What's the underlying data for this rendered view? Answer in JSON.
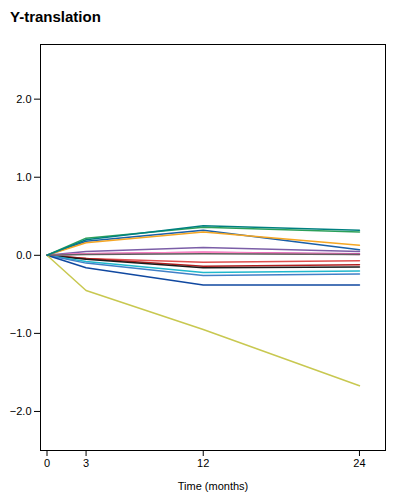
{
  "chart_data": {
    "type": "line",
    "title": "Y-translation",
    "xlabel": "Time (months)",
    "x": [
      0,
      3,
      12,
      24
    ],
    "xlim": [
      -0.5,
      26
    ],
    "xticks": [
      0,
      3,
      12,
      24
    ],
    "ylim": [
      -2.5,
      2.7
    ],
    "yticks": [
      -2,
      -1,
      0,
      1,
      2
    ],
    "grid": false,
    "series": [
      {
        "color": "#1a5fa8",
        "values": [
          0,
          0.18,
          0.32,
          0.07
        ]
      },
      {
        "color": "#2ca05a",
        "values": [
          0,
          0.22,
          0.36,
          0.3
        ]
      },
      {
        "color": "#f5a623",
        "values": [
          0,
          0.16,
          0.3,
          0.13
        ]
      },
      {
        "color": "#7b5ea7",
        "values": [
          0,
          0.05,
          0.1,
          0.05
        ]
      },
      {
        "color": "#e05050",
        "values": [
          0,
          -0.04,
          -0.09,
          -0.07
        ]
      },
      {
        "color": "#b02020",
        "values": [
          0,
          -0.04,
          -0.14,
          -0.12
        ]
      },
      {
        "color": "#1a1a1a",
        "values": [
          0,
          -0.05,
          -0.16,
          -0.15
        ]
      },
      {
        "color": "#cc44aa",
        "values": [
          0,
          0.02,
          0.04,
          0.02
        ]
      },
      {
        "color": "#20b8cc",
        "values": [
          0,
          -0.08,
          -0.22,
          -0.2
        ]
      },
      {
        "color": "#4080c8",
        "values": [
          0,
          -0.1,
          -0.26,
          -0.24
        ]
      },
      {
        "color": "#1048a0",
        "values": [
          0,
          -0.16,
          -0.38,
          -0.38
        ]
      },
      {
        "color": "#ff80c0",
        "values": [
          0,
          0.02,
          0.04,
          0.01
        ]
      },
      {
        "color": "#c8c850",
        "values": [
          0,
          -0.45,
          -0.95,
          -1.67
        ]
      },
      {
        "color": "#606060",
        "values": [
          0,
          0.01,
          0.02,
          0.01
        ]
      },
      {
        "color": "#008080",
        "values": [
          0,
          0.2,
          0.38,
          0.32
        ]
      }
    ]
  }
}
